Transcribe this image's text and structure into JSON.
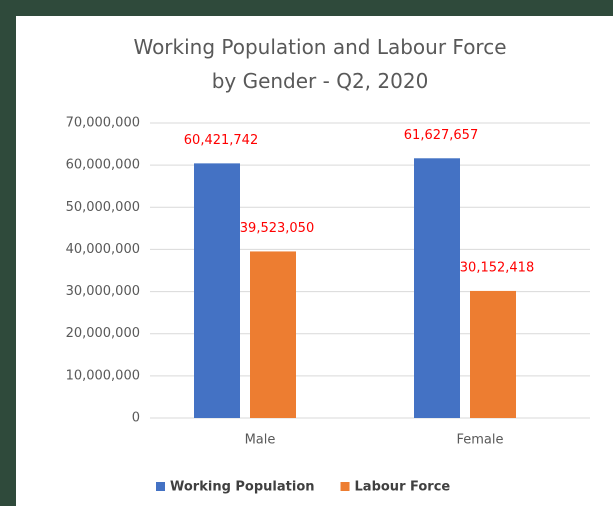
{
  "chart_data": {
    "type": "bar",
    "title": "Working Population and Labour Force by Gender - Q2, 2020",
    "categories": [
      "Male",
      "Female"
    ],
    "series": [
      {
        "name": "Working Population",
        "color": "#4472c4",
        "values": [
          60421742,
          61627657
        ],
        "value_labels": [
          "60,421,742",
          "61,627,657"
        ]
      },
      {
        "name": "Labour Force",
        "color": "#ed7d31",
        "values": [
          39523050,
          30152418
        ],
        "value_labels": [
          "39,523,050",
          "30,152,418"
        ]
      }
    ],
    "value_label_color": "#ff0000",
    "ylim": [
      0,
      70000000
    ],
    "yticks": [
      0,
      {
        "value": 10000000,
        "label": "10,000,000"
      },
      {
        "value": 20000000,
        "label": "20,000,000"
      },
      {
        "value": 30000000,
        "label": "30,000,000"
      },
      {
        "value": 40000000,
        "label": "40,000,000"
      },
      {
        "value": 50000000,
        "label": "50,000,000"
      },
      {
        "value": 60000000,
        "label": "60,000,000"
      },
      {
        "value": 70000000,
        "label": "70,000,000"
      }
    ],
    "grid": true,
    "legend": "bottom"
  }
}
